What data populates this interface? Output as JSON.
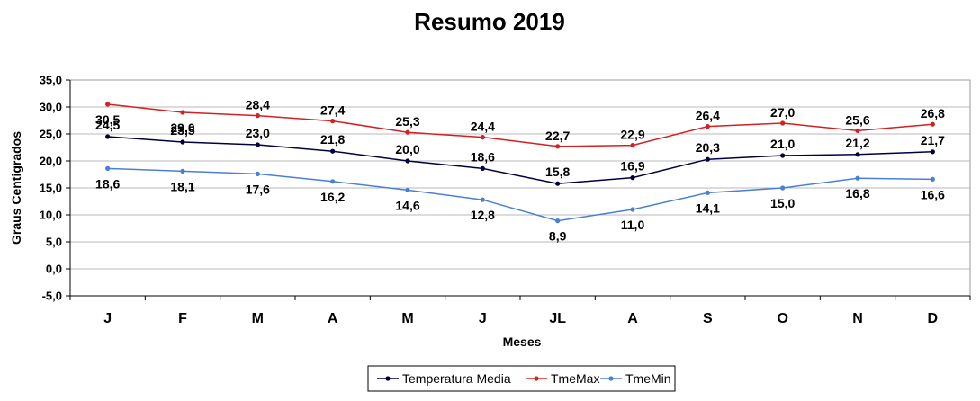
{
  "chart_data": {
    "type": "line",
    "title": "Resumo 2019",
    "xlabel": "Meses",
    "ylabel": "Graus Centigrados",
    "ylim": [
      -5,
      35
    ],
    "yticks": [
      "-5,0",
      "0,0",
      "5,0",
      "10,0",
      "15,0",
      "20,0",
      "25,0",
      "30,0",
      "35,0"
    ],
    "grid": true,
    "legend_position": "bottom",
    "categories": [
      "J",
      "F",
      "M",
      "A",
      "M",
      "J",
      "JL",
      "A",
      "S",
      "O",
      "N",
      "D"
    ],
    "series": [
      {
        "name": "Temperatura Media",
        "color": "#000040",
        "values": [
          24.5,
          23.5,
          23.0,
          21.8,
          20.0,
          18.6,
          15.8,
          16.9,
          20.3,
          21.0,
          21.2,
          21.7
        ],
        "labels": [
          "24,5",
          "23,5",
          "23,0",
          "21,8",
          "20,0",
          "18,6",
          "15,8",
          "16,9",
          "20,3",
          "21,0",
          "21,2",
          "21,7"
        ]
      },
      {
        "name": "TmeMax",
        "color": "#d42020",
        "values": [
          30.5,
          29.0,
          28.4,
          27.4,
          25.3,
          24.4,
          22.7,
          22.9,
          26.4,
          27.0,
          25.6,
          26.8
        ],
        "labels": [
          "30,5",
          "29,0",
          "28,4",
          "27,4",
          "25,3",
          "24,4",
          "22,7",
          "22,9",
          "26,4",
          "27,0",
          "25,6",
          "26,8"
        ]
      },
      {
        "name": "TmeMin",
        "color": "#4a7fd4",
        "values": [
          18.6,
          18.1,
          17.6,
          16.2,
          14.6,
          12.8,
          8.9,
          11.0,
          14.1,
          15.0,
          16.8,
          16.6
        ],
        "labels": [
          "18,6",
          "18,1",
          "17,6",
          "16,2",
          "14,6",
          "12,8",
          "8,9",
          "11,0",
          "14,1",
          "15,0",
          "16,8",
          "16,6"
        ]
      }
    ]
  }
}
